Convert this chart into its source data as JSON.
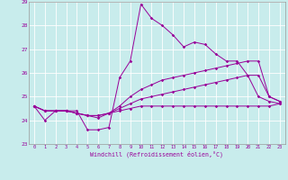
{
  "xlabel": "Windchill (Refroidissement éolien,°C)",
  "ylabel": "",
  "background_color": "#c8ecec",
  "grid_color": "#ffffff",
  "line_color": "#990099",
  "xlim": [
    -0.5,
    23.5
  ],
  "ylim": [
    23,
    29
  ],
  "yticks": [
    23,
    24,
    25,
    26,
    27,
    28,
    29
  ],
  "xticks": [
    0,
    1,
    2,
    3,
    4,
    5,
    6,
    7,
    8,
    9,
    10,
    11,
    12,
    13,
    14,
    15,
    16,
    17,
    18,
    19,
    20,
    21,
    22,
    23
  ],
  "series": [
    [
      24.6,
      24.0,
      24.4,
      24.4,
      24.4,
      23.6,
      23.6,
      23.7,
      25.8,
      26.5,
      28.9,
      28.3,
      28.0,
      27.6,
      27.1,
      27.3,
      27.2,
      26.8,
      26.5,
      26.5,
      25.9,
      25.0,
      24.8,
      24.7
    ],
    [
      24.6,
      24.4,
      24.4,
      24.4,
      24.3,
      24.2,
      24.1,
      24.3,
      24.6,
      25.0,
      25.3,
      25.5,
      25.7,
      25.8,
      25.9,
      26.0,
      26.1,
      26.2,
      26.3,
      26.4,
      26.5,
      26.5,
      25.0,
      24.8
    ],
    [
      24.6,
      24.4,
      24.4,
      24.4,
      24.3,
      24.2,
      24.2,
      24.3,
      24.5,
      24.7,
      24.9,
      25.0,
      25.1,
      25.2,
      25.3,
      25.4,
      25.5,
      25.6,
      25.7,
      25.8,
      25.9,
      25.9,
      25.0,
      24.8
    ],
    [
      24.6,
      24.4,
      24.4,
      24.4,
      24.3,
      24.2,
      24.2,
      24.3,
      24.4,
      24.5,
      24.6,
      24.6,
      24.6,
      24.6,
      24.6,
      24.6,
      24.6,
      24.6,
      24.6,
      24.6,
      24.6,
      24.6,
      24.6,
      24.7
    ]
  ],
  "figsize": [
    3.2,
    2.0
  ],
  "dpi": 100
}
